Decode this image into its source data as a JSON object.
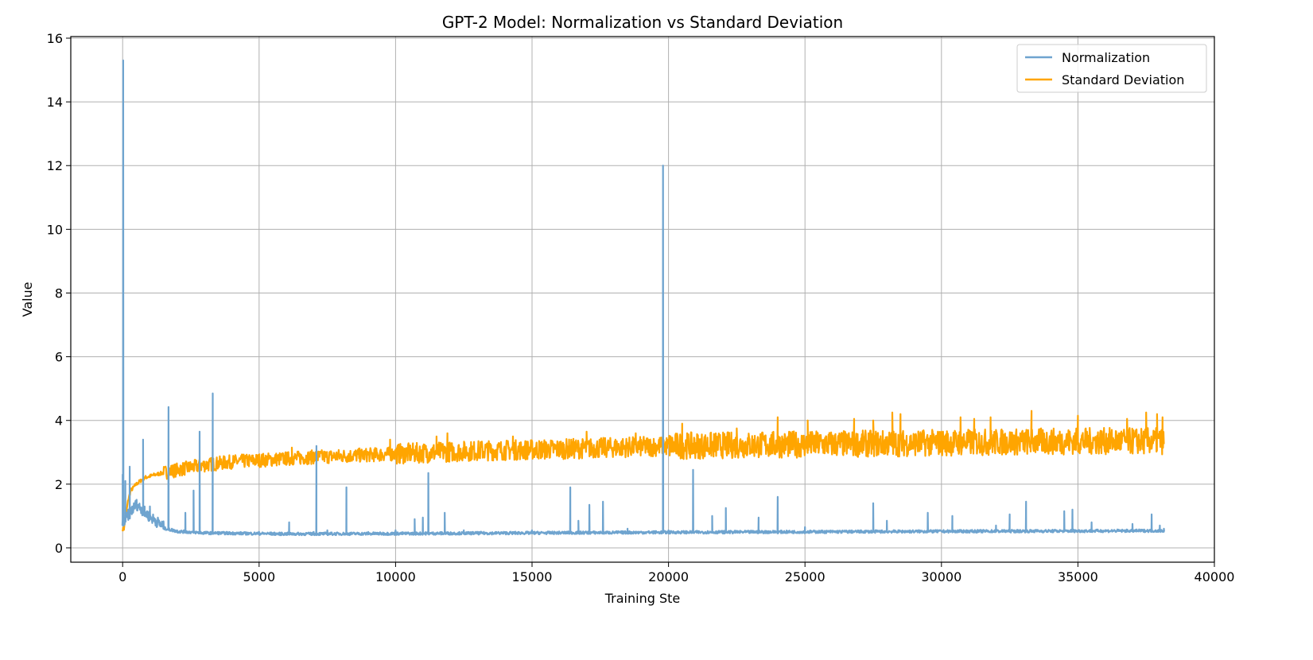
{
  "chart_data": {
    "type": "line",
    "title": "GPT-2 Model: Normalization vs Standard Deviation",
    "xlabel": "Training Ste",
    "ylabel": "Value",
    "xlim": [
      -1900,
      40000
    ],
    "ylim": [
      -0.45,
      16.05
    ],
    "xticks": [
      0,
      5000,
      10000,
      15000,
      20000,
      25000,
      30000,
      35000,
      40000
    ],
    "yticks": [
      0,
      2,
      4,
      6,
      8,
      10,
      12,
      14,
      16
    ],
    "grid": true,
    "legend_position": "top-right",
    "x_range_of_data": [
      0,
      38150
    ],
    "series": [
      {
        "name": "Normalization",
        "color": "#6fa4cf",
        "points": [
          [
            0,
            2.3
          ],
          [
            20,
            15.3
          ],
          [
            40,
            0.7
          ],
          [
            100,
            2.1
          ],
          [
            200,
            1.2
          ],
          [
            260,
            2.55
          ],
          [
            350,
            1.3
          ],
          [
            500,
            1.5
          ],
          [
            700,
            1.2
          ],
          [
            750,
            3.4
          ],
          [
            800,
            1.0
          ],
          [
            1000,
            1.3
          ],
          [
            1200,
            0.9
          ],
          [
            1500,
            0.8
          ],
          [
            1680,
            4.42
          ],
          [
            1800,
            0.6
          ],
          [
            2000,
            0.55
          ],
          [
            2300,
            1.1
          ],
          [
            2600,
            1.8
          ],
          [
            2820,
            3.65
          ],
          [
            3000,
            0.5
          ],
          [
            3300,
            4.85
          ],
          [
            3500,
            0.5
          ],
          [
            5000,
            0.5
          ],
          [
            6100,
            0.8
          ],
          [
            7000,
            0.5
          ],
          [
            7100,
            3.2
          ],
          [
            7500,
            0.55
          ],
          [
            8200,
            1.9
          ],
          [
            9000,
            0.5
          ],
          [
            10000,
            0.55
          ],
          [
            10700,
            0.9
          ],
          [
            11000,
            0.95
          ],
          [
            11200,
            2.35
          ],
          [
            11800,
            1.1
          ],
          [
            12500,
            0.55
          ],
          [
            15000,
            0.55
          ],
          [
            16400,
            1.9
          ],
          [
            16700,
            0.85
          ],
          [
            17100,
            1.35
          ],
          [
            17600,
            1.45
          ],
          [
            18500,
            0.6
          ],
          [
            19800,
            12.0
          ],
          [
            20000,
            0.55
          ],
          [
            20900,
            2.45
          ],
          [
            21600,
            1.0
          ],
          [
            22100,
            1.25
          ],
          [
            23300,
            0.95
          ],
          [
            24000,
            1.6
          ],
          [
            25000,
            0.65
          ],
          [
            27500,
            1.4
          ],
          [
            28000,
            0.85
          ],
          [
            29500,
            1.1
          ],
          [
            30400,
            1.0
          ],
          [
            32000,
            0.7
          ],
          [
            32500,
            1.05
          ],
          [
            33100,
            1.45
          ],
          [
            34500,
            1.15
          ],
          [
            34800,
            1.2
          ],
          [
            35500,
            0.8
          ],
          [
            37000,
            0.75
          ],
          [
            37700,
            1.05
          ],
          [
            38000,
            0.7
          ],
          [
            38150,
            0.6
          ]
        ],
        "baseline": [
          [
            0,
            0.7
          ],
          [
            500,
            1.3
          ],
          [
            1000,
            0.9
          ],
          [
            1500,
            0.6
          ],
          [
            2000,
            0.5
          ],
          [
            3000,
            0.45
          ],
          [
            6000,
            0.42
          ],
          [
            10000,
            0.43
          ],
          [
            20000,
            0.47
          ],
          [
            30000,
            0.5
          ],
          [
            38150,
            0.52
          ]
        ]
      },
      {
        "name": "Standard Deviation",
        "color": "#ffa500",
        "points": [
          [
            0,
            0.58
          ],
          [
            50,
            0.6
          ],
          [
            100,
            0.9
          ],
          [
            200,
            1.5
          ],
          [
            300,
            1.8
          ],
          [
            500,
            2.0
          ],
          [
            800,
            2.2
          ],
          [
            1200,
            2.3
          ],
          [
            2000,
            2.45
          ],
          [
            3000,
            2.6
          ],
          [
            4000,
            2.7
          ],
          [
            5000,
            2.75
          ],
          [
            7000,
            2.85
          ],
          [
            10000,
            2.95
          ],
          [
            13000,
            3.05
          ],
          [
            16000,
            3.1
          ],
          [
            20000,
            3.2
          ],
          [
            25000,
            3.25
          ],
          [
            30000,
            3.3
          ],
          [
            35000,
            3.35
          ],
          [
            38150,
            3.35
          ]
        ],
        "peaks": [
          [
            3700,
            2.85
          ],
          [
            6200,
            3.15
          ],
          [
            7000,
            3.0
          ],
          [
            9800,
            3.4
          ],
          [
            11500,
            3.5
          ],
          [
            11900,
            3.6
          ],
          [
            14300,
            3.5
          ],
          [
            17000,
            3.65
          ],
          [
            18800,
            3.6
          ],
          [
            20500,
            3.9
          ],
          [
            22500,
            3.75
          ],
          [
            24000,
            4.1
          ],
          [
            25100,
            4.0
          ],
          [
            26800,
            4.05
          ],
          [
            27500,
            4.0
          ],
          [
            28200,
            4.25
          ],
          [
            28500,
            4.2
          ],
          [
            30700,
            4.1
          ],
          [
            31200,
            4.05
          ],
          [
            31800,
            4.1
          ],
          [
            33300,
            4.3
          ],
          [
            35000,
            4.15
          ],
          [
            36800,
            4.05
          ],
          [
            37500,
            4.25
          ],
          [
            37900,
            4.2
          ],
          [
            38100,
            4.1
          ]
        ]
      }
    ]
  }
}
